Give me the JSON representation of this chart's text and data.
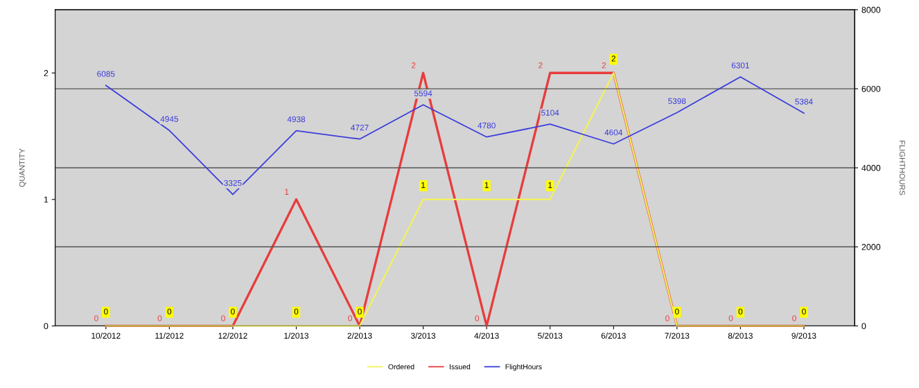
{
  "chart_data": {
    "type": "line",
    "categories": [
      "10/2012",
      "11/2012",
      "12/2012",
      "1/2013",
      "2/2013",
      "3/2013",
      "4/2013",
      "5/2013",
      "6/2013",
      "7/2013",
      "8/2013",
      "9/2013"
    ],
    "series": [
      {
        "name": "Ordered",
        "color": "#f2f25a",
        "values": [
          0,
          0,
          0,
          0,
          0,
          1,
          1,
          1,
          2,
          0,
          0,
          0
        ]
      },
      {
        "name": "Issued",
        "color": "#e83c3c",
        "values": [
          0,
          0,
          0,
          1,
          0,
          2,
          0,
          2,
          2,
          0,
          0,
          0
        ]
      },
      {
        "name": "FlightHours",
        "color": "#3c3cdc",
        "axis": "y2",
        "values": [
          6085,
          4945,
          3325,
          4938,
          4727,
          5594,
          4780,
          5104,
          4604,
          5398,
          6301,
          5384
        ]
      }
    ],
    "ylabel": "QUANTITY",
    "y2label": "FLIGHTHOURS",
    "ylim": [
      0,
      2.5
    ],
    "yticks": [
      0,
      1,
      2
    ],
    "y2lim": [
      0,
      8000
    ],
    "y2ticks": [
      0,
      2000,
      4000,
      6000,
      8000
    ],
    "grid": "y2",
    "legend": "bottom",
    "data_labels": true,
    "marker": "none",
    "line_style": "solid"
  }
}
